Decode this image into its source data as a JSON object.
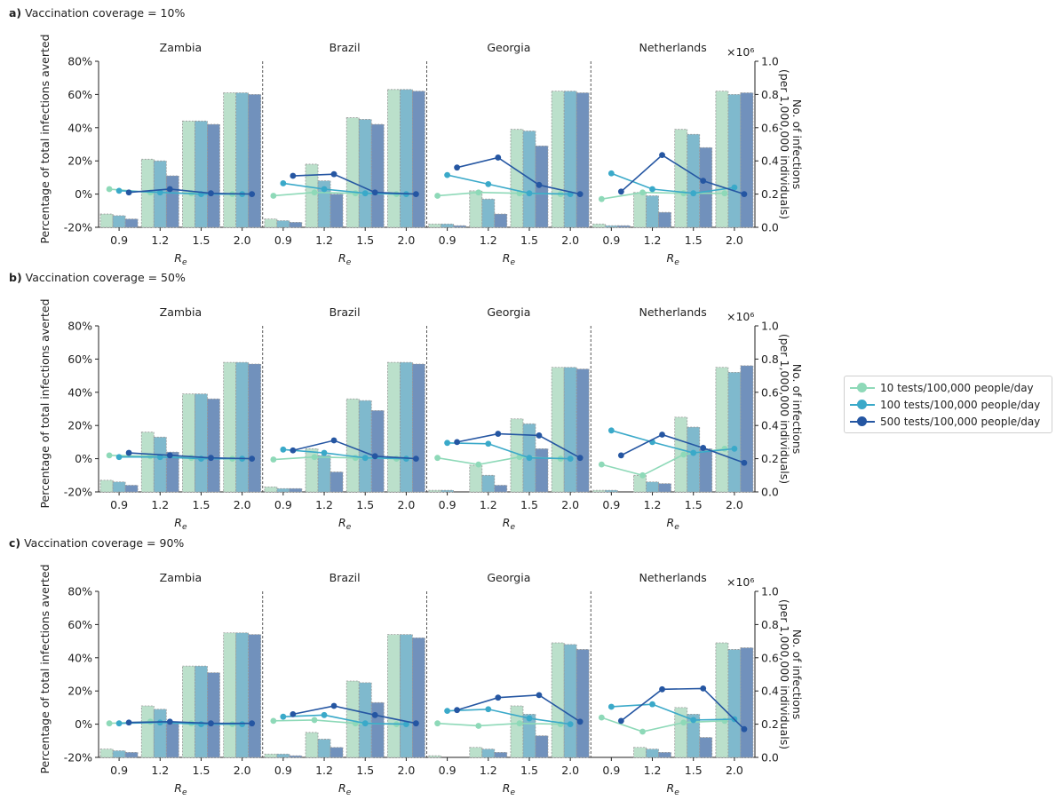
{
  "y_left_ticks": [
    "80%",
    "60%",
    "40%",
    "20%",
    "0%",
    "-20%"
  ],
  "y_right_ticks": [
    "1.0",
    "0.8",
    "0.6",
    "0.4",
    "0.2",
    "0.0"
  ],
  "x_ticks": [
    "0.9",
    "1.2",
    "1.5",
    "2.0"
  ],
  "xlabel_main": "R",
  "xlabel_sub": "e",
  "ylabel_left": "Percentage of total infections averted",
  "ylabel_right_1": "No. of infections",
  "ylabel_right_2": "(per 1,000,000 individuals)",
  "multiplier": "×10⁶",
  "colors": {
    "t10": "#8ed9b8",
    "t100": "#3aa9c9",
    "t500": "#2556a2",
    "bar10": "#bbe0cb",
    "bar100": "#7fb9cd",
    "bar500": "#7191bc"
  },
  "legend": [
    {
      "label": "10 tests/100,000 people/day",
      "color": "#8ed9b8"
    },
    {
      "label": "100 tests/100,000 people/day",
      "color": "#3aa9c9"
    },
    {
      "label": "500 tests/100,000 people/day",
      "color": "#2556a2"
    }
  ],
  "chart_data": {
    "type": "bar",
    "note": "Bars: number of infections per 1,000,000 individuals (right axis, ×10^6) per testing rate; lines: percentage of total infections averted (left axis) per testing rate",
    "categories": [
      "0.9",
      "1.2",
      "1.5",
      "2.0"
    ],
    "ylim_left": [
      -20,
      80
    ],
    "ylim_right": [
      0,
      1.0
    ],
    "panels": [
      {
        "label": "a)",
        "title": "Vaccination coverage = 10%",
        "countries": [
          {
            "name": "Zambia",
            "bars": {
              "t10": [
                0.08,
                0.41,
                0.64,
                0.81
              ],
              "t100": [
                0.07,
                0.4,
                0.64,
                0.81
              ],
              "t500": [
                0.05,
                0.31,
                0.62,
                0.8
              ]
            },
            "lines": {
              "t10": [
                3,
                1,
                0.5,
                0
              ],
              "t100": [
                2,
                1,
                0,
                0
              ],
              "t500": [
                1,
                3,
                0.5,
                0
              ]
            }
          },
          {
            "name": "Brazil",
            "bars": {
              "t10": [
                0.05,
                0.38,
                0.66,
                0.83
              ],
              "t100": [
                0.04,
                0.28,
                0.65,
                0.83
              ],
              "t500": [
                0.03,
                0.2,
                0.62,
                0.82
              ]
            },
            "lines": {
              "t10": [
                -1,
                1,
                0.5,
                0
              ],
              "t100": [
                6.5,
                3,
                0.5,
                0
              ],
              "t500": [
                11,
                12,
                1,
                0
              ]
            }
          },
          {
            "name": "Georgia",
            "bars": {
              "t10": [
                0.02,
                0.22,
                0.59,
                0.82
              ],
              "t100": [
                0.02,
                0.17,
                0.58,
                0.82
              ],
              "t500": [
                0.01,
                0.08,
                0.49,
                0.81
              ]
            },
            "lines": {
              "t10": [
                -1,
                1,
                0.5,
                0
              ],
              "t100": [
                11.5,
                6,
                0.5,
                0
              ],
              "t500": [
                16,
                22,
                5.5,
                0
              ]
            }
          },
          {
            "name": "Netherlands",
            "bars": {
              "t10": [
                0.02,
                0.21,
                0.59,
                0.82
              ],
              "t100": [
                0.01,
                0.19,
                0.56,
                0.8
              ],
              "t500": [
                0.01,
                0.09,
                0.48,
                0.81
              ]
            },
            "lines": {
              "t10": [
                -3,
                1,
                0.5,
                0.5
              ],
              "t100": [
                12.5,
                3,
                0.5,
                4
              ],
              "t500": [
                1.5,
                23.5,
                8,
                0
              ]
            }
          }
        ]
      },
      {
        "label": "b)",
        "title": "Vaccination coverage = 50%",
        "countries": [
          {
            "name": "Zambia",
            "bars": {
              "t10": [
                0.07,
                0.36,
                0.59,
                0.78
              ],
              "t100": [
                0.06,
                0.33,
                0.59,
                0.78
              ],
              "t500": [
                0.04,
                0.24,
                0.56,
                0.77
              ]
            },
            "lines": {
              "t10": [
                2,
                1.5,
                0.5,
                0
              ],
              "t100": [
                1,
                1,
                0,
                0
              ],
              "t500": [
                3.5,
                2,
                0.5,
                0
              ]
            }
          },
          {
            "name": "Brazil",
            "bars": {
              "t10": [
                0.03,
                0.26,
                0.56,
                0.78
              ],
              "t100": [
                0.02,
                0.22,
                0.55,
                0.78
              ],
              "t500": [
                0.02,
                0.12,
                0.49,
                0.77
              ]
            },
            "lines": {
              "t10": [
                -0.5,
                1,
                0.5,
                0
              ],
              "t100": [
                5.5,
                3.5,
                0.5,
                0
              ],
              "t500": [
                5,
                11,
                1.5,
                0
              ]
            }
          },
          {
            "name": "Georgia",
            "bars": {
              "t10": [
                0.01,
                0.16,
                0.44,
                0.75
              ],
              "t100": [
                0.01,
                0.1,
                0.41,
                0.75
              ],
              "t500": [
                0.0,
                0.04,
                0.26,
                0.74
              ]
            },
            "lines": {
              "t10": [
                0.5,
                -3.5,
                1,
                0
              ],
              "t100": [
                9.5,
                9,
                0.5,
                0
              ],
              "t500": [
                10,
                15,
                14,
                0.5
              ]
            }
          },
          {
            "name": "Netherlands",
            "bars": {
              "t10": [
                0.01,
                0.1,
                0.45,
                0.75
              ],
              "t100": [
                0.01,
                0.06,
                0.39,
                0.72
              ],
              "t500": [
                0.0,
                0.05,
                0.26,
                0.76
              ]
            },
            "lines": {
              "t10": [
                -3.5,
                -10,
                2.5,
                6
              ],
              "t100": [
                17,
                10,
                3.5,
                6
              ],
              "t500": [
                2,
                14.5,
                6.5,
                -2.5
              ]
            }
          }
        ]
      },
      {
        "label": "c)",
        "title": "Vaccination coverage = 90%",
        "countries": [
          {
            "name": "Zambia",
            "bars": {
              "t10": [
                0.05,
                0.31,
                0.55,
                0.75
              ],
              "t100": [
                0.04,
                0.29,
                0.55,
                0.75
              ],
              "t500": [
                0.03,
                0.21,
                0.51,
                0.74
              ]
            },
            "lines": {
              "t10": [
                0.5,
                1.5,
                0.5,
                0
              ],
              "t100": [
                0.5,
                1,
                0,
                0
              ],
              "t500": [
                1,
                1.5,
                0.5,
                0.5
              ]
            }
          },
          {
            "name": "Brazil",
            "bars": {
              "t10": [
                0.02,
                0.15,
                0.46,
                0.74
              ],
              "t100": [
                0.02,
                0.11,
                0.45,
                0.74
              ],
              "t500": [
                0.01,
                0.06,
                0.33,
                0.72
              ]
            },
            "lines": {
              "t10": [
                2,
                2.5,
                0.5,
                0
              ],
              "t100": [
                4.5,
                5.5,
                0.5,
                0
              ],
              "t500": [
                6,
                11,
                5.5,
                0.5
              ]
            }
          },
          {
            "name": "Georgia",
            "bars": {
              "t10": [
                0.01,
                0.06,
                0.31,
                0.69
              ],
              "t100": [
                0.0,
                0.05,
                0.26,
                0.68
              ],
              "t500": [
                0.0,
                0.03,
                0.13,
                0.65
              ]
            },
            "lines": {
              "t10": [
                0.5,
                -1,
                0.5,
                0
              ],
              "t100": [
                8,
                9,
                3.5,
                0
              ],
              "t500": [
                8.5,
                16,
                17.5,
                1.5
              ]
            }
          },
          {
            "name": "Netherlands",
            "bars": {
              "t10": [
                0.0,
                0.06,
                0.3,
                0.69
              ],
              "t100": [
                0.0,
                0.05,
                0.26,
                0.65
              ],
              "t500": [
                0.0,
                0.03,
                0.12,
                0.66
              ]
            },
            "lines": {
              "t10": [
                4,
                -4.5,
                1,
                2
              ],
              "t100": [
                10.5,
                12,
                2.5,
                3
              ],
              "t500": [
                2,
                21,
                21.5,
                -3
              ]
            }
          }
        ]
      }
    ]
  }
}
